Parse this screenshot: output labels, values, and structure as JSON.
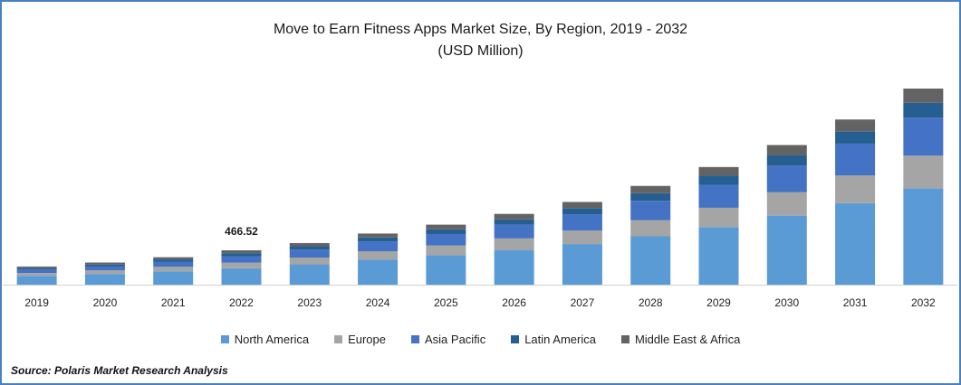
{
  "title": "Move to Earn Fitness Apps Market Size, By Region, 2019 - 2032",
  "subtitle": "(USD Million)",
  "source": "Source: Polaris Market Research Analysis",
  "chart_data": {
    "type": "bar",
    "stacked": true,
    "categories": [
      "2019",
      "2020",
      "2021",
      "2022",
      "2023",
      "2024",
      "2025",
      "2026",
      "2027",
      "2028",
      "2029",
      "2030",
      "2031",
      "2032"
    ],
    "series": [
      {
        "name": "North America",
        "color": "#5b9bd5",
        "values": [
          118,
          145,
          181,
          223,
          275,
          341,
          399,
          470,
          550,
          655,
          780,
          935,
          1105,
          1306
        ]
      },
      {
        "name": "Europe",
        "color": "#a5a5a5",
        "values": [
          39,
          50,
          61,
          74,
          92,
          112,
          132,
          157,
          183,
          219,
          262,
          319,
          375,
          442
        ]
      },
      {
        "name": "Asia Pacific",
        "color": "#4472c4",
        "values": [
          47,
          56,
          70,
          88,
          109,
          133,
          155,
          184,
          218,
          262,
          310,
          361,
          431,
          515
        ]
      },
      {
        "name": "Latin America",
        "color": "#255e91",
        "values": [
          20,
          22,
          30,
          42,
          44,
          53,
          63,
          74,
          86,
          103,
          124,
          141,
          163,
          200
        ]
      },
      {
        "name": "Middle East & Africa",
        "color": "#636363",
        "values": [
          22,
          27,
          30,
          39,
          44,
          54,
          64,
          74,
          84,
          99,
          118,
          136,
          164,
          194
        ]
      }
    ],
    "annotations": [
      {
        "category": "2022",
        "label": "466.52"
      }
    ],
    "ylim": [
      0,
      3000
    ],
    "grid": false,
    "legend": "bottom"
  }
}
